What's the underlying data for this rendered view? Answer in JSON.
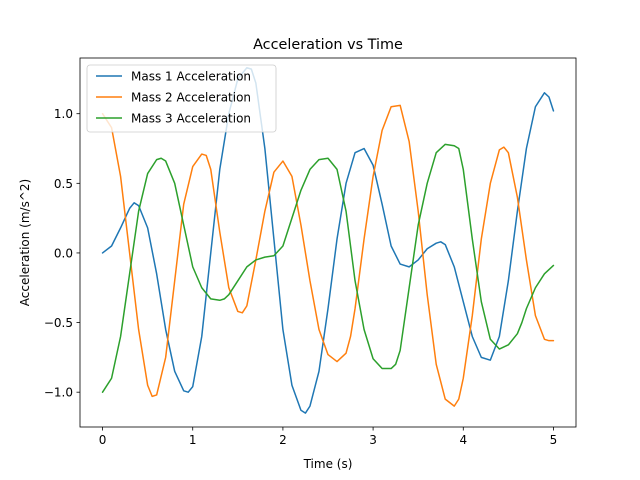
{
  "chart_data": {
    "type": "line",
    "title": "Acceleration vs Time",
    "xlabel": "Time (s)",
    "ylabel": "Acceleration (m/s^2)",
    "xlim": [
      -0.25,
      5.25
    ],
    "ylim": [
      -1.25,
      1.4
    ],
    "xticks": [
      0,
      1,
      2,
      3,
      4,
      5
    ],
    "xtick_labels": [
      "0",
      "1",
      "2",
      "3",
      "4",
      "5"
    ],
    "yticks": [
      -1.0,
      -0.5,
      0.0,
      0.5,
      1.0
    ],
    "ytick_labels": [
      "−1.0",
      "−0.5",
      "0.0",
      "0.5",
      "1.0"
    ],
    "grid": false,
    "legend_position": "top-left",
    "series": [
      {
        "name": "Mass 1 Acceleration",
        "color": "#1f77b4",
        "x": [
          0.0,
          0.1,
          0.2,
          0.3,
          0.35,
          0.4,
          0.5,
          0.6,
          0.7,
          0.8,
          0.9,
          0.95,
          1.0,
          1.1,
          1.2,
          1.3,
          1.4,
          1.5,
          1.6,
          1.65,
          1.7,
          1.8,
          1.9,
          2.0,
          2.1,
          2.2,
          2.25,
          2.3,
          2.4,
          2.5,
          2.6,
          2.7,
          2.8,
          2.9,
          3.0,
          3.1,
          3.2,
          3.3,
          3.4,
          3.5,
          3.6,
          3.7,
          3.75,
          3.8,
          3.9,
          4.0,
          4.1,
          4.2,
          4.3,
          4.4,
          4.5,
          4.6,
          4.7,
          4.8,
          4.9,
          4.95,
          5.0
        ],
        "y": [
          0.0,
          0.05,
          0.18,
          0.32,
          0.36,
          0.34,
          0.18,
          -0.15,
          -0.55,
          -0.85,
          -0.99,
          -1.0,
          -0.96,
          -0.6,
          0.0,
          0.6,
          1.0,
          1.25,
          1.33,
          1.32,
          1.22,
          0.75,
          0.1,
          -0.55,
          -0.95,
          -1.13,
          -1.15,
          -1.1,
          -0.85,
          -0.4,
          0.1,
          0.5,
          0.72,
          0.75,
          0.63,
          0.35,
          0.05,
          -0.08,
          -0.1,
          -0.05,
          0.03,
          0.07,
          0.08,
          0.06,
          -0.1,
          -0.35,
          -0.6,
          -0.75,
          -0.77,
          -0.6,
          -0.2,
          0.3,
          0.75,
          1.05,
          1.15,
          1.12,
          1.02
        ]
      },
      {
        "name": "Mass 2 Acceleration",
        "color": "#ff7f0e",
        "x": [
          0.0,
          0.1,
          0.2,
          0.3,
          0.4,
          0.5,
          0.55,
          0.6,
          0.7,
          0.8,
          0.9,
          1.0,
          1.1,
          1.15,
          1.2,
          1.3,
          1.4,
          1.5,
          1.55,
          1.6,
          1.7,
          1.8,
          1.9,
          2.0,
          2.1,
          2.2,
          2.3,
          2.4,
          2.5,
          2.6,
          2.7,
          2.75,
          2.8,
          2.9,
          3.0,
          3.1,
          3.2,
          3.3,
          3.4,
          3.5,
          3.6,
          3.7,
          3.8,
          3.9,
          3.95,
          4.0,
          4.1,
          4.2,
          4.3,
          4.4,
          4.45,
          4.5,
          4.6,
          4.7,
          4.8,
          4.9,
          4.95,
          5.0
        ],
        "y": [
          1.0,
          0.9,
          0.55,
          0.0,
          -0.55,
          -0.95,
          -1.03,
          -1.02,
          -0.75,
          -0.2,
          0.35,
          0.62,
          0.71,
          0.7,
          0.6,
          0.15,
          -0.25,
          -0.42,
          -0.43,
          -0.38,
          -0.05,
          0.3,
          0.58,
          0.66,
          0.55,
          0.2,
          -0.2,
          -0.55,
          -0.73,
          -0.78,
          -0.72,
          -0.6,
          -0.4,
          0.1,
          0.55,
          0.88,
          1.05,
          1.06,
          0.8,
          0.3,
          -0.3,
          -0.8,
          -1.05,
          -1.1,
          -1.05,
          -0.9,
          -0.45,
          0.1,
          0.5,
          0.74,
          0.76,
          0.72,
          0.4,
          -0.05,
          -0.45,
          -0.62,
          -0.63,
          -0.63
        ]
      },
      {
        "name": "Mass 3 Acceleration",
        "color": "#2ca02c",
        "x": [
          0.0,
          0.1,
          0.2,
          0.3,
          0.4,
          0.5,
          0.6,
          0.65,
          0.7,
          0.8,
          0.9,
          1.0,
          1.1,
          1.2,
          1.3,
          1.35,
          1.4,
          1.5,
          1.6,
          1.7,
          1.8,
          1.9,
          2.0,
          2.1,
          2.2,
          2.3,
          2.4,
          2.5,
          2.6,
          2.7,
          2.8,
          2.9,
          3.0,
          3.1,
          3.2,
          3.25,
          3.3,
          3.4,
          3.5,
          3.6,
          3.7,
          3.8,
          3.9,
          3.95,
          4.0,
          4.1,
          4.2,
          4.3,
          4.4,
          4.5,
          4.6,
          4.65,
          4.7,
          4.8,
          4.9,
          5.0
        ],
        "y": [
          -1.0,
          -0.9,
          -0.6,
          -0.15,
          0.3,
          0.57,
          0.67,
          0.68,
          0.66,
          0.5,
          0.2,
          -0.1,
          -0.25,
          -0.33,
          -0.34,
          -0.33,
          -0.3,
          -0.2,
          -0.1,
          -0.05,
          -0.03,
          -0.02,
          0.05,
          0.25,
          0.45,
          0.6,
          0.67,
          0.68,
          0.6,
          0.3,
          -0.2,
          -0.55,
          -0.76,
          -0.83,
          -0.83,
          -0.8,
          -0.7,
          -0.25,
          0.2,
          0.5,
          0.72,
          0.78,
          0.77,
          0.75,
          0.6,
          0.1,
          -0.35,
          -0.62,
          -0.69,
          -0.66,
          -0.58,
          -0.5,
          -0.4,
          -0.25,
          -0.15,
          -0.09
        ]
      }
    ]
  }
}
